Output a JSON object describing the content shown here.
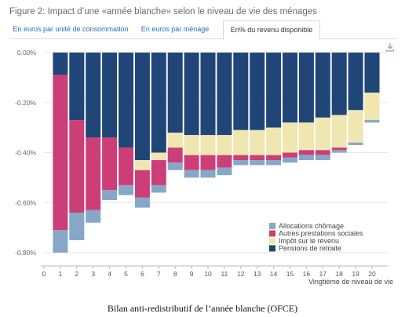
{
  "header": {
    "title": "Figure 2: Impact d’une «année blanche» selon le niveau de vie des ménages",
    "tabs": [
      {
        "label": "En euros par unité de consommation",
        "active": false
      },
      {
        "label": "En euros par ménage",
        "active": false
      },
      {
        "label": "En% du revenu disponible",
        "active": true
      }
    ],
    "download_icon": "download-icon"
  },
  "caption": "Bilan anti-redistributif de l’année blanche (OFCE)",
  "colors": {
    "Allocations chômage": "#86a7c8",
    "Autres prestations sociales": "#cc3e78",
    "Impôt sur le revenu": "#f0e6b0",
    "Pensions de retraite": "#1f4677"
  },
  "chart_data": {
    "type": "bar",
    "stacked": true,
    "categories": [
      "1",
      "2",
      "3",
      "4",
      "5",
      "6",
      "7",
      "8",
      "9",
      "10",
      "11",
      "12",
      "13",
      "14",
      "15",
      "16",
      "17",
      "18",
      "19",
      "20"
    ],
    "x_ticks": [
      "0",
      "1",
      "2",
      "3",
      "4",
      "5",
      "6",
      "7",
      "8",
      "9",
      "10",
      "11",
      "12",
      "13",
      "14",
      "15",
      "16",
      "17",
      "18",
      "19",
      "20"
    ],
    "xlabel": "Vingtième de niveau de vie",
    "ylabel": "",
    "y_ticks": [
      "0.00%",
      "-0.20%",
      "-0.40%",
      "-0.60%",
      "-0.80%"
    ],
    "ylim": [
      -0.84,
      0
    ],
    "series": [
      {
        "name": "Pensions de retraite",
        "values": [
          -0.09,
          -0.27,
          -0.34,
          -0.34,
          -0.38,
          -0.43,
          -0.4,
          -0.32,
          -0.33,
          -0.33,
          -0.33,
          -0.31,
          -0.31,
          -0.3,
          -0.28,
          -0.28,
          -0.26,
          -0.25,
          -0.23,
          -0.16
        ]
      },
      {
        "name": "Impôt sur le revenu",
        "values": [
          0,
          0,
          0,
          0,
          0,
          -0.04,
          -0.03,
          -0.06,
          -0.08,
          -0.08,
          -0.08,
          -0.1,
          -0.1,
          -0.11,
          -0.12,
          -0.11,
          -0.13,
          -0.13,
          -0.13,
          -0.11
        ]
      },
      {
        "name": "Autres prestations sociales",
        "values": [
          -0.62,
          -0.37,
          -0.29,
          -0.21,
          -0.15,
          -0.11,
          -0.1,
          -0.06,
          -0.06,
          -0.06,
          -0.05,
          -0.02,
          -0.02,
          -0.02,
          -0.02,
          -0.02,
          -0.02,
          -0.01,
          0,
          0
        ]
      },
      {
        "name": "Allocations chômage",
        "values": [
          -0.09,
          -0.11,
          -0.05,
          -0.04,
          -0.04,
          -0.04,
          -0.03,
          -0.03,
          -0.03,
          -0.03,
          -0.03,
          -0.02,
          -0.02,
          -0.02,
          -0.02,
          -0.02,
          -0.02,
          -0.01,
          -0.01,
          -0.01
        ]
      }
    ],
    "legend": [
      "Allocations chômage",
      "Autres prestations sociales",
      "Impôt sur le revenu",
      "Pensions de retraite"
    ],
    "legend_position": "bottom-right",
    "grid": true
  }
}
